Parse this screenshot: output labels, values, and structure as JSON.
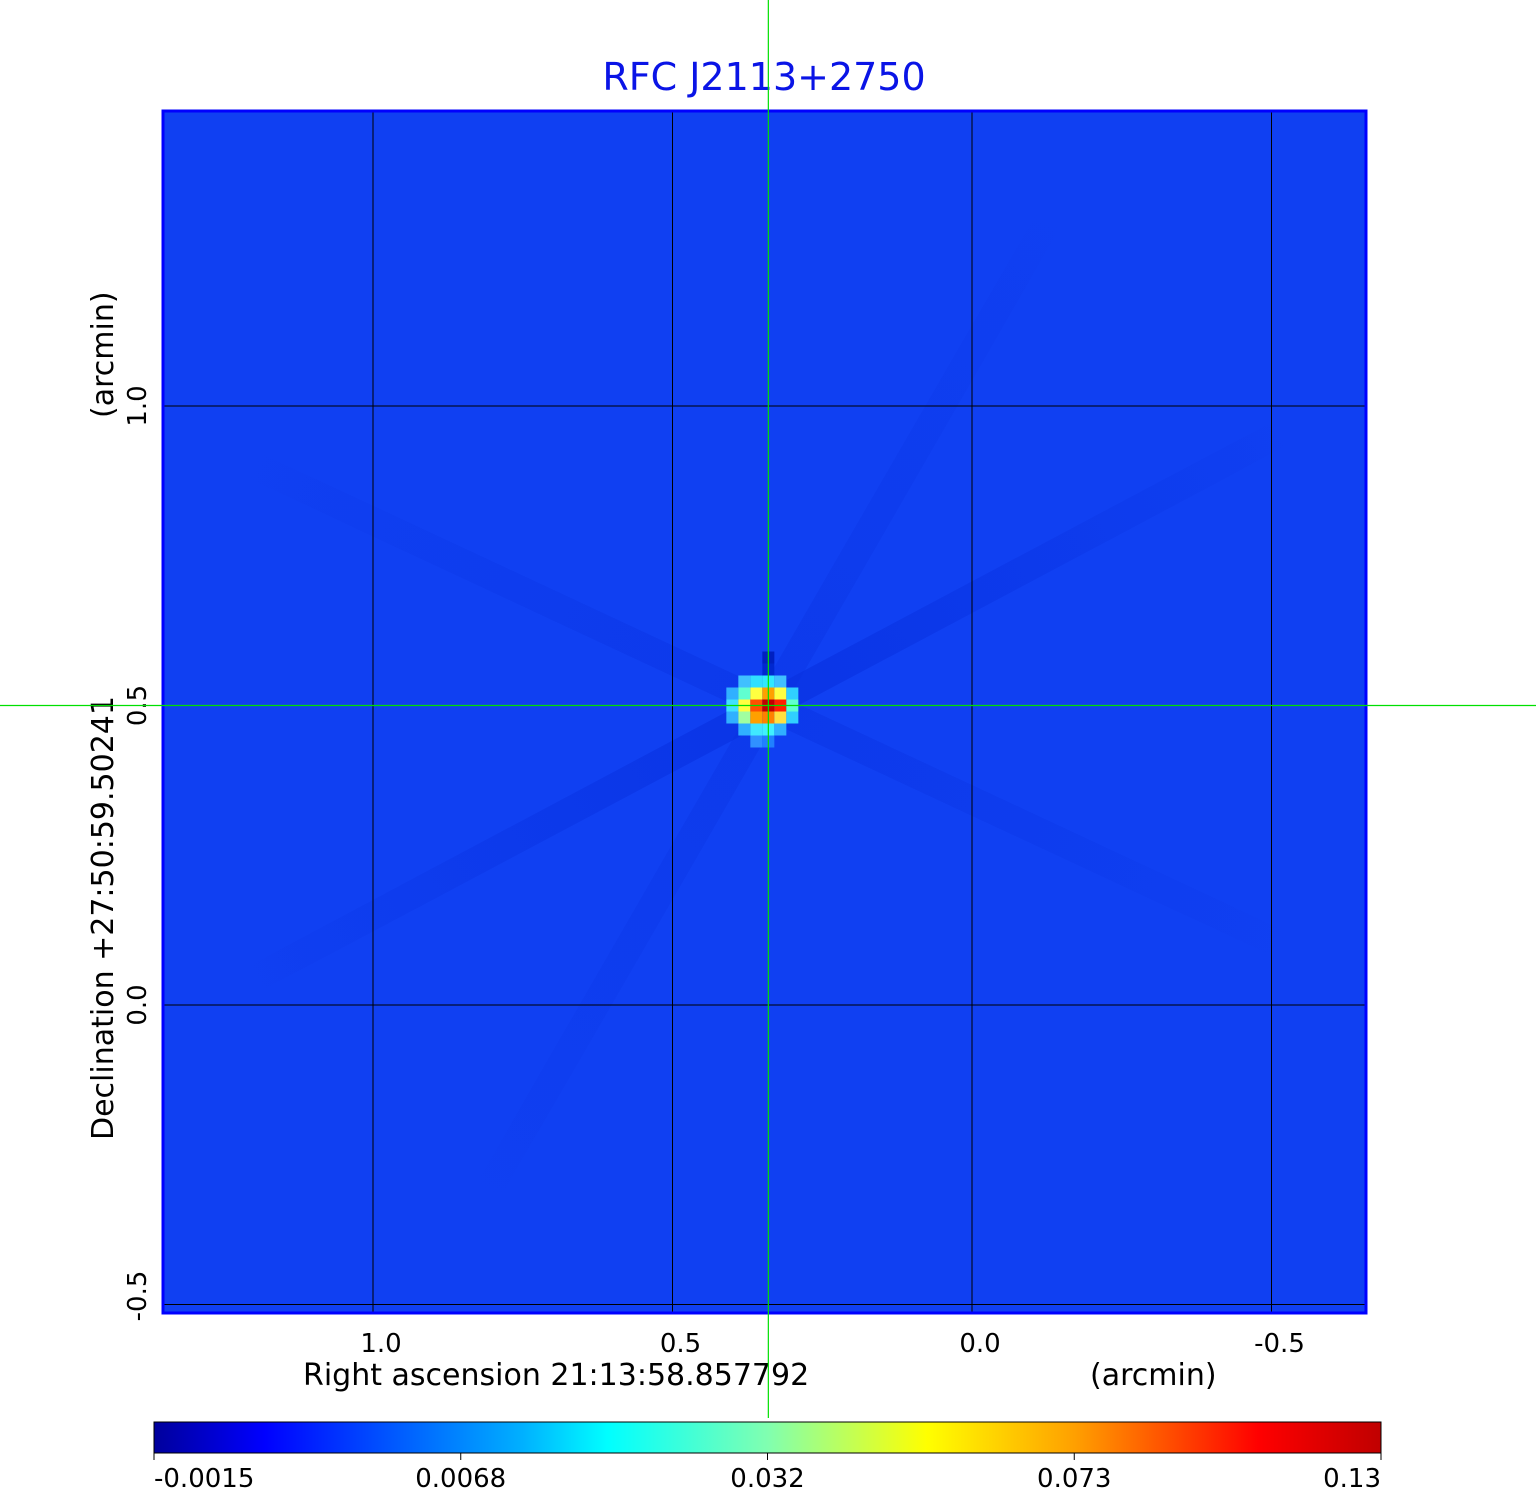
{
  "chart_data": {
    "type": "heatmap",
    "title": "RFC J2113+2750",
    "xlabel": "Right ascension  21:13:58.857792",
    "xunit": "(arcmin)",
    "ylabel": "Declination  +27:50:59.50241",
    "yunit": "(arcmin)",
    "xlim": [
      1.35,
      -0.65
    ],
    "ylim": [
      -0.52,
      1.49
    ],
    "xticks": [
      1.0,
      0.5,
      0.0,
      -0.5
    ],
    "xtick_labels": [
      "1.0",
      "0.5",
      "0.0",
      "-0.5"
    ],
    "yticks": [
      1.0,
      0.5,
      0.0,
      -0.5
    ],
    "ytick_labels": [
      "1.0",
      "0.5",
      "0.0",
      "-0.5"
    ],
    "grid": true,
    "crosshair": {
      "x": 0.34,
      "y": 0.5,
      "color": "#00e000"
    },
    "source_peak": {
      "x": 0.34,
      "y": 0.5,
      "value": 0.13
    },
    "background_level": 0.0,
    "colormap": "jet",
    "colorbar": {
      "placement": "bottom",
      "range": [
        -0.0015,
        0.13
      ],
      "tick_labels": [
        "-0.0015",
        "0.0068",
        "0.032",
        "0.073",
        "0.13"
      ]
    },
    "colors": {
      "title": "#0a14e6",
      "frame": "#0000ff",
      "background": "#1040f2"
    }
  }
}
